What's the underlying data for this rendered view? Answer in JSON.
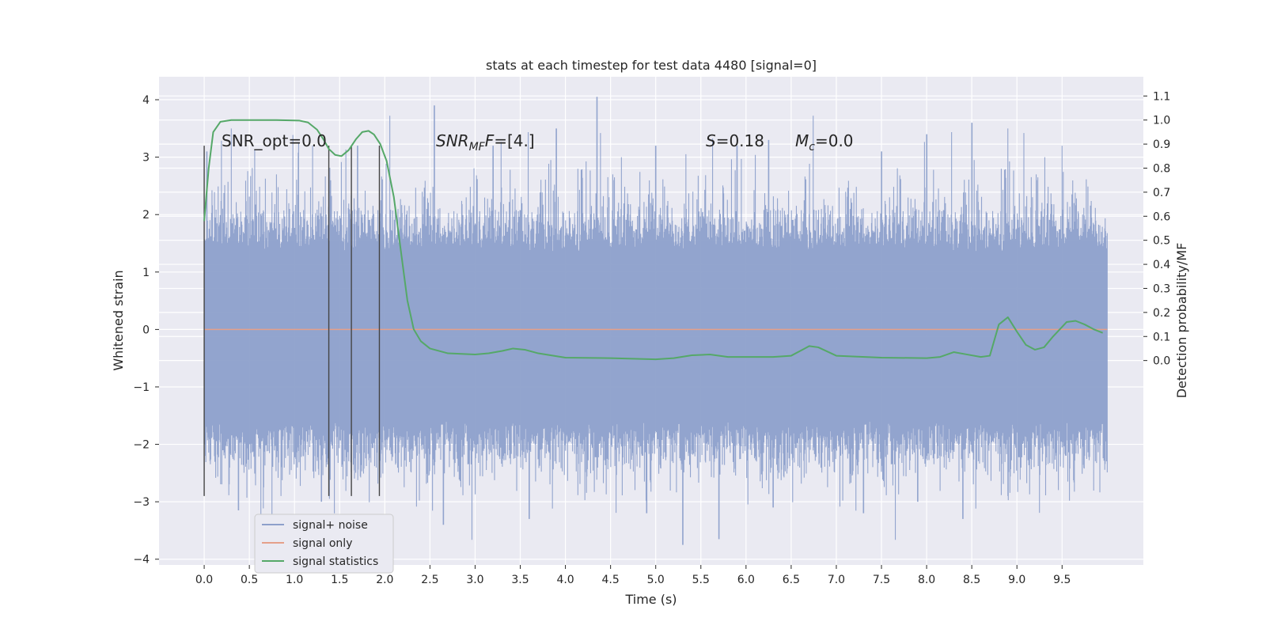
{
  "chart_data": {
    "type": "line",
    "title": "stats at each timestep for test data 4480 [signal=0]",
    "xlabel": "Time (s)",
    "ylabel": "Whitened strain",
    "ylabel_right": "Detection probability/MF",
    "xlim": [
      -0.5,
      10.4
    ],
    "ylim": [
      -4.1,
      4.4
    ],
    "ylim_right": [
      -0.85,
      1.18
    ],
    "x_ticks": [
      "0.0",
      "0.5",
      "1.0",
      "1.5",
      "2.0",
      "2.5",
      "3.0",
      "3.5",
      "4.0",
      "4.5",
      "5.0",
      "5.5",
      "6.0",
      "6.5",
      "7.0",
      "7.5",
      "8.0",
      "8.5",
      "9.0",
      "9.5"
    ],
    "y_ticks": [
      "4",
      "3",
      "2",
      "1",
      "0",
      "−1",
      "−2",
      "−3",
      "−4"
    ],
    "y_ticks_right": [
      "1.1",
      "1.0",
      "0.9",
      "0.8",
      "0.7",
      "0.6",
      "0.5",
      "0.4",
      "0.3",
      "0.2",
      "0.1",
      "0.0"
    ],
    "grid": true,
    "legend_position": "lower-left",
    "annotations": {
      "snr_opt": "SNR_opt=0.0",
      "snr_mf_main": "SNR",
      "snr_mf_sub": "MF",
      "snr_mf_value": "=[4.]",
      "s_symbol": "S",
      "s_value": "=0.18",
      "mc_symbol": "M",
      "mc_sub": "c",
      "mc_value": "=0.0"
    },
    "vertical_lines_x": [
      0.0,
      1.38,
      1.63,
      1.94
    ],
    "vertical_lines_y": [
      -2.9,
      3.2
    ],
    "series": [
      {
        "name": "signal+ noise",
        "color": "#8da0cb",
        "axis": "left",
        "x_range": [
          0.0,
          10.0
        ],
        "band": [
          -1.6,
          1.35
        ],
        "peaks_high": [
          [
            0.03,
            3.1
          ],
          [
            0.3,
            3.5
          ],
          [
            0.8,
            2.7
          ],
          [
            1.2,
            3.2
          ],
          [
            1.7,
            3.2
          ],
          [
            2.55,
            3.9
          ],
          [
            3.2,
            3.2
          ],
          [
            3.9,
            3.5
          ],
          [
            4.35,
            4.05
          ],
          [
            5.0,
            3.2
          ],
          [
            5.9,
            3.2
          ],
          [
            6.25,
            3.3
          ],
          [
            7.5,
            3.1
          ],
          [
            8.0,
            3.4
          ],
          [
            8.5,
            3.6
          ],
          [
            8.9,
            3.5
          ],
          [
            9.5,
            3.2
          ]
        ],
        "peaks_low": [
          [
            0.38,
            -3.15
          ],
          [
            0.85,
            -2.9
          ],
          [
            1.3,
            -3.0
          ],
          [
            2.65,
            -3.4
          ],
          [
            3.6,
            -3.3
          ],
          [
            4.9,
            -3.2
          ],
          [
            5.3,
            -3.75
          ],
          [
            5.7,
            -3.65
          ],
          [
            6.3,
            -3.1
          ],
          [
            7.3,
            -3.2
          ],
          [
            7.9,
            -3.0
          ],
          [
            8.4,
            -3.3
          ],
          [
            8.9,
            -2.9
          ]
        ]
      },
      {
        "name": "signal only",
        "color": "#e5a08a",
        "axis": "left",
        "x": [
          0.0,
          10.0
        ],
        "y": [
          0.0,
          0.0
        ]
      },
      {
        "name": "signal statistics",
        "color": "#55a868",
        "axis": "right",
        "x": [
          0.0,
          0.05,
          0.1,
          0.18,
          0.3,
          0.5,
          0.8,
          1.05,
          1.15,
          1.25,
          1.32,
          1.38,
          1.45,
          1.52,
          1.6,
          1.68,
          1.75,
          1.82,
          1.88,
          1.95,
          2.02,
          2.1,
          2.18,
          2.25,
          2.32,
          2.4,
          2.5,
          2.7,
          3.0,
          3.15,
          3.3,
          3.42,
          3.55,
          3.7,
          4.0,
          4.5,
          5.0,
          5.2,
          5.4,
          5.6,
          5.8,
          6.0,
          6.3,
          6.5,
          6.6,
          6.7,
          6.8,
          7.0,
          7.5,
          8.0,
          8.15,
          8.3,
          8.45,
          8.6,
          8.7,
          8.8,
          8.9,
          9.0,
          9.1,
          9.2,
          9.3,
          9.4,
          9.55,
          9.65,
          9.75,
          9.85,
          9.95
        ],
        "y": [
          0.58,
          0.8,
          0.95,
          0.993,
          1.0,
          1.0,
          1.0,
          0.998,
          0.99,
          0.96,
          0.92,
          0.88,
          0.855,
          0.85,
          0.875,
          0.92,
          0.95,
          0.955,
          0.94,
          0.9,
          0.83,
          0.68,
          0.45,
          0.25,
          0.13,
          0.08,
          0.05,
          0.03,
          0.025,
          0.03,
          0.04,
          0.05,
          0.045,
          0.03,
          0.012,
          0.01,
          0.005,
          0.01,
          0.022,
          0.025,
          0.015,
          0.015,
          0.015,
          0.02,
          0.04,
          0.06,
          0.055,
          0.02,
          0.012,
          0.01,
          0.015,
          0.035,
          0.025,
          0.015,
          0.02,
          0.15,
          0.18,
          0.12,
          0.065,
          0.045,
          0.055,
          0.1,
          0.16,
          0.165,
          0.15,
          0.13,
          0.115
        ]
      }
    ]
  }
}
